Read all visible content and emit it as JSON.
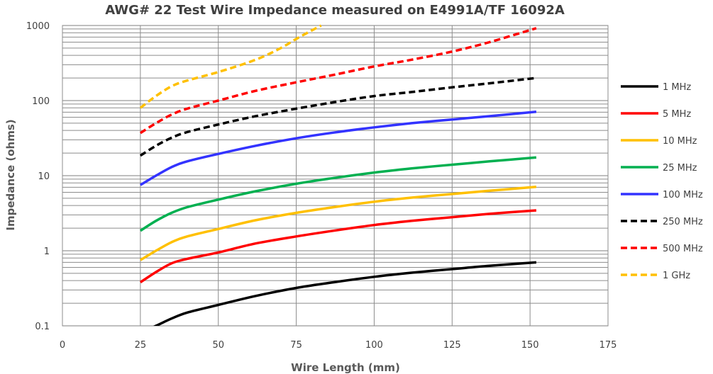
{
  "chart_data": {
    "type": "line",
    "title": "AWG# 22 Test Wire Impedance measured on E4991A/TF 16092A",
    "xlabel": "Wire Length (mm)",
    "ylabel": "Impedance (ohms)",
    "xlim": [
      0,
      175
    ],
    "ylim": [
      0.1,
      1000
    ],
    "yscale": "log",
    "x_ticks": [
      "0",
      "25",
      "50",
      "75",
      "100",
      "125",
      "150",
      "175"
    ],
    "y_ticks": [
      "0.1",
      "1",
      "10",
      "100",
      "1000"
    ],
    "grid": true,
    "legend_position": "right",
    "series": [
      {
        "name": "1 MHz",
        "color": "#000000",
        "dash": "solid",
        "x": [
          25,
          30,
          35,
          40,
          50,
          62,
          75,
          87,
          100,
          112,
          125,
          137,
          152
        ],
        "y": [
          0.08,
          0.1,
          0.125,
          0.15,
          0.19,
          0.25,
          0.32,
          0.38,
          0.45,
          0.51,
          0.57,
          0.63,
          0.7
        ]
      },
      {
        "name": "5 MHz",
        "color": "#ff0000",
        "dash": "solid",
        "x": [
          25,
          30,
          35,
          40,
          50,
          62,
          75,
          87,
          100,
          112,
          125,
          137,
          152
        ],
        "y": [
          0.38,
          0.52,
          0.68,
          0.78,
          0.95,
          1.25,
          1.55,
          1.85,
          2.2,
          2.5,
          2.8,
          3.1,
          3.45
        ]
      },
      {
        "name": "10 MHz",
        "color": "#ffc000",
        "dash": "solid",
        "x": [
          25,
          30,
          35,
          40,
          50,
          62,
          75,
          87,
          100,
          112,
          125,
          137,
          152
        ],
        "y": [
          0.75,
          1.0,
          1.3,
          1.55,
          1.95,
          2.55,
          3.2,
          3.8,
          4.5,
          5.1,
          5.7,
          6.3,
          7.1
        ]
      },
      {
        "name": "25 MHz",
        "color": "#00b050",
        "dash": "solid",
        "x": [
          25,
          30,
          35,
          40,
          50,
          62,
          75,
          87,
          100,
          112,
          125,
          137,
          152
        ],
        "y": [
          1.85,
          2.5,
          3.2,
          3.8,
          4.8,
          6.2,
          7.8,
          9.3,
          11.0,
          12.5,
          14.0,
          15.5,
          17.5
        ]
      },
      {
        "name": "100 MHz",
        "color": "#3333ff",
        "dash": "solid",
        "x": [
          25,
          30,
          35,
          40,
          50,
          62,
          75,
          87,
          100,
          112,
          125,
          137,
          152
        ],
        "y": [
          7.5,
          10.0,
          13.0,
          15.5,
          19.5,
          25.0,
          31.5,
          37.5,
          44.0,
          50.0,
          56.0,
          62.0,
          71.0
        ]
      },
      {
        "name": "250 MHz",
        "color": "#000000",
        "dash": "dashed",
        "x": [
          25,
          30,
          35,
          40,
          50,
          62,
          75,
          87,
          100,
          112,
          125,
          137,
          152
        ],
        "y": [
          18.5,
          25.0,
          32.0,
          38.0,
          48.0,
          62.0,
          78.0,
          95.0,
          115.0,
          130.0,
          150.0,
          170.0,
          200.0
        ]
      },
      {
        "name": "500 MHz",
        "color": "#ff0000",
        "dash": "dashed",
        "x": [
          25,
          30,
          35,
          40,
          50,
          62,
          75,
          87,
          100,
          112,
          125,
          137,
          152
        ],
        "y": [
          37.0,
          50.0,
          65.0,
          78.0,
          100.0,
          135.0,
          175.0,
          220.0,
          285.0,
          350.0,
          450.0,
          600.0,
          920.0
        ]
      },
      {
        "name": "1 GHz",
        "color": "#ffc000",
        "dash": "dashed",
        "x": [
          25,
          30,
          35,
          40,
          50,
          62,
          70,
          76,
          83
        ],
        "y": [
          80.0,
          115.0,
          155.0,
          185.0,
          240.0,
          350.0,
          500.0,
          700.0,
          1000.0
        ]
      }
    ]
  }
}
